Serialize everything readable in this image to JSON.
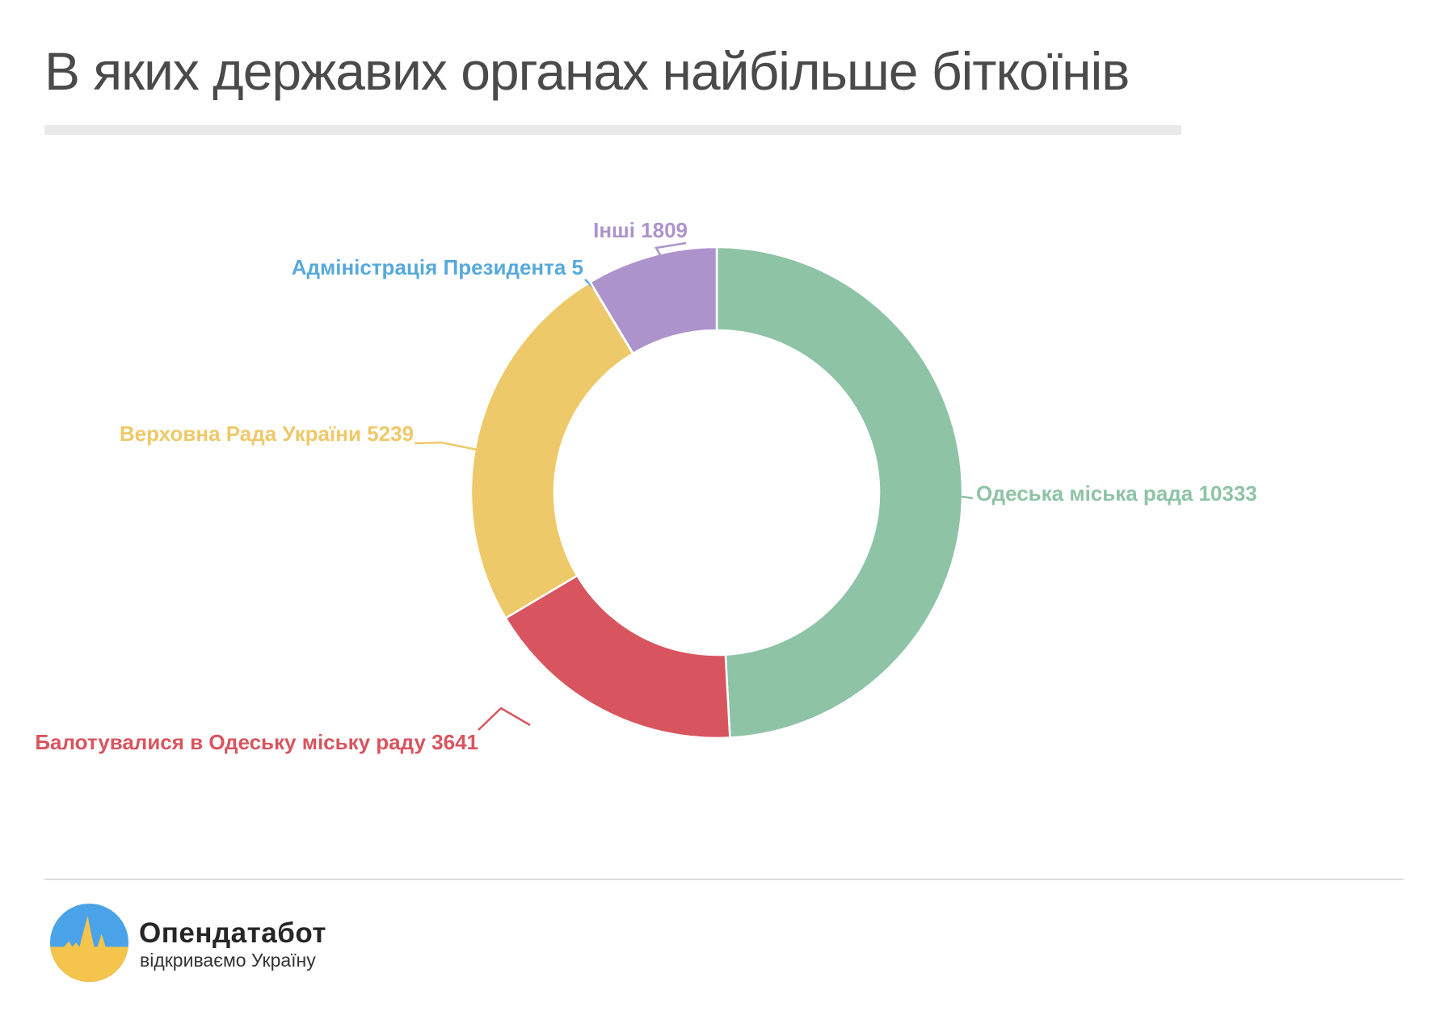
{
  "title": "В яких державих органах найбільше біткоїнів",
  "chart_data": {
    "type": "pie",
    "donut": true,
    "title": "В яких державих органах найбільше біткоїнів",
    "start_angle_deg": 0,
    "direction": "clockwise",
    "total": 21027,
    "slices": [
      {
        "label": "Одеська міська рада",
        "value": 10333,
        "color": "#8ec3a6"
      },
      {
        "label": "Балотувалися в Одеську міську раду",
        "value": 3641,
        "color": "#d8555f"
      },
      {
        "label": "Верховна Рада України",
        "value": 5239,
        "color": "#eec969"
      },
      {
        "label": "Адміністрація Президента",
        "value": 5,
        "color": "#57a9dc"
      },
      {
        "label": "Інші",
        "value": 1809,
        "color": "#ad93cb"
      }
    ]
  },
  "footer": {
    "brand": "Опендатабот",
    "tagline": "відкриваємо Україну",
    "logo_colors": {
      "blue": "#4aa3e8",
      "yellow": "#f4c44c"
    }
  },
  "colors": {
    "title_text": "#4a4a4a",
    "divider": "#e9e9e9"
  }
}
